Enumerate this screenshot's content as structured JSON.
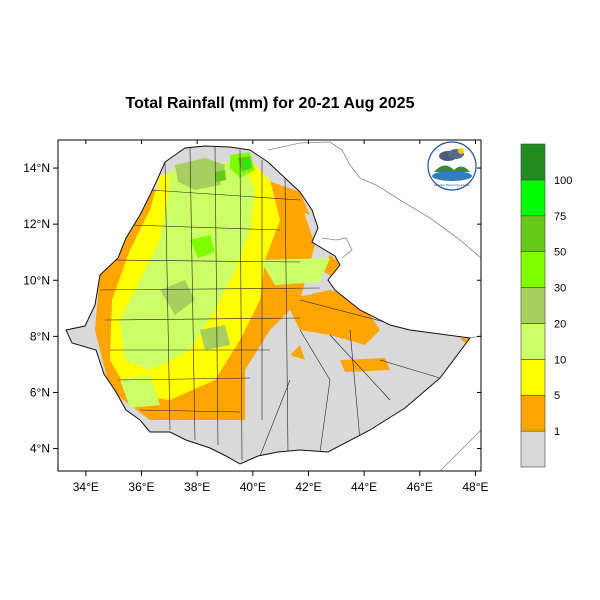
{
  "title": "Total Rainfall (mm) for 20-21 Aug 2025",
  "map": {
    "lon_range": [
      33,
      48.2
    ],
    "lat_range": [
      3.2,
      15
    ],
    "x_ticks": [
      {
        "value": 34,
        "label": "34°E"
      },
      {
        "value": 36,
        "label": "36°E"
      },
      {
        "value": 38,
        "label": "38°E"
      },
      {
        "value": 40,
        "label": "40°E"
      },
      {
        "value": 42,
        "label": "42°E"
      },
      {
        "value": 44,
        "label": "44°E"
      },
      {
        "value": 46,
        "label": "46°E"
      },
      {
        "value": 48,
        "label": "48°E"
      }
    ],
    "y_ticks": [
      {
        "value": 4,
        "label": "4°N"
      },
      {
        "value": 6,
        "label": "6°N"
      },
      {
        "value": 8,
        "label": "8°N"
      },
      {
        "value": 10,
        "label": "10°N"
      },
      {
        "value": 12,
        "label": "12°N"
      },
      {
        "value": 14,
        "label": "14°N"
      }
    ]
  },
  "legend": {
    "colors": [
      "#d9d9d9",
      "#ffa500",
      "#ffff00",
      "#ccff66",
      "#a6cf60",
      "#7fff00",
      "#66c819",
      "#00ff00",
      "#228b22"
    ],
    "labels": [
      "1",
      "5",
      "10",
      "20",
      "30",
      "50",
      "75",
      "100"
    ]
  },
  "logo": {
    "text": "Ethiopian Meteorology Institute"
  }
}
